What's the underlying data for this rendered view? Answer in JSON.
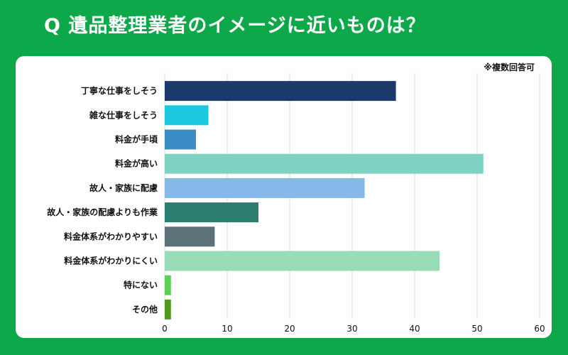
{
  "title": "Q 遺品整理業者のイメージに近いものは？",
  "note": "※複数回答可",
  "chart_data": {
    "type": "bar",
    "orientation": "horizontal",
    "categories": [
      "丁寧な仕事をしそう",
      "雑な仕事をしそう",
      "料金が手頃",
      "料金が高い",
      "故人・家族に配慮",
      "故人・家族の配慮よりも作業",
      "料金体系がわかりやすい",
      "料金体系がわかりにくい",
      "特にない",
      "その他"
    ],
    "values": [
      37,
      7,
      5,
      51,
      32,
      15,
      8,
      44,
      1,
      1
    ],
    "colors": [
      "#1b3a6b",
      "#1ec8e0",
      "#3a8cc4",
      "#7fd3c3",
      "#86b8ea",
      "#2c7e70",
      "#5d7178",
      "#98dbb6",
      "#5dcf57",
      "#4f9a1c"
    ],
    "xlim": [
      0,
      60
    ],
    "xticks": [
      0,
      10,
      20,
      30,
      40,
      50,
      60
    ],
    "grid": true
  }
}
